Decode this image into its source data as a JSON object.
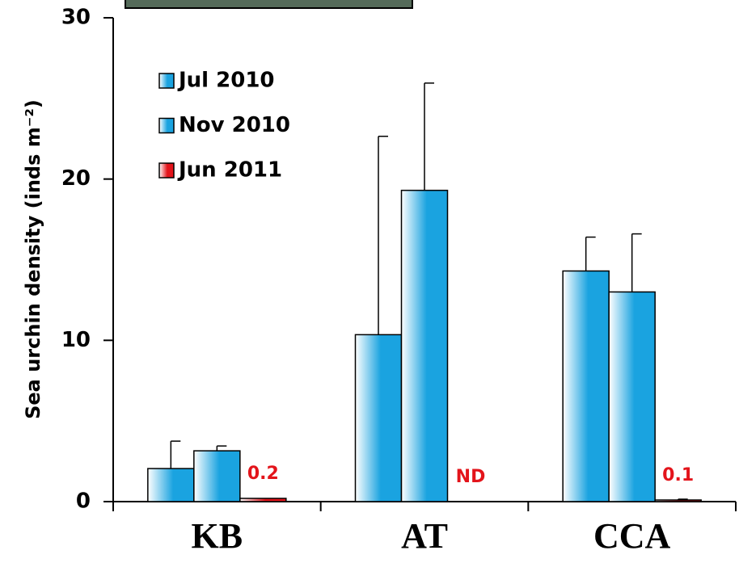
{
  "chart_data": {
    "type": "bar",
    "ylabel": "Sea urchin density  (inds m⁻²)",
    "categories": [
      "KB",
      "AT",
      "CCA"
    ],
    "series": [
      {
        "name": "Jul 2010",
        "color": "#1aa3e0",
        "values": [
          2.05,
          10.35,
          14.3
        ],
        "errors": [
          1.7,
          12.3,
          2.1
        ]
      },
      {
        "name": "Nov 2010",
        "color": "#1aa3e0",
        "values": [
          3.15,
          19.3,
          13.0
        ],
        "errors": [
          0.3,
          6.65,
          3.6
        ]
      },
      {
        "name": "Jun 2011",
        "color": "#e3141b",
        "values": [
          0.2,
          null,
          0.1
        ],
        "errors": [
          0,
          null,
          0.05
        ],
        "value_labels": [
          "0.2",
          "ND",
          "0.1"
        ],
        "value_label_color": "#e3141b"
      }
    ],
    "ylim": [
      0,
      30
    ],
    "yticks": [
      0,
      10,
      20,
      30
    ],
    "legend": "upper left"
  }
}
